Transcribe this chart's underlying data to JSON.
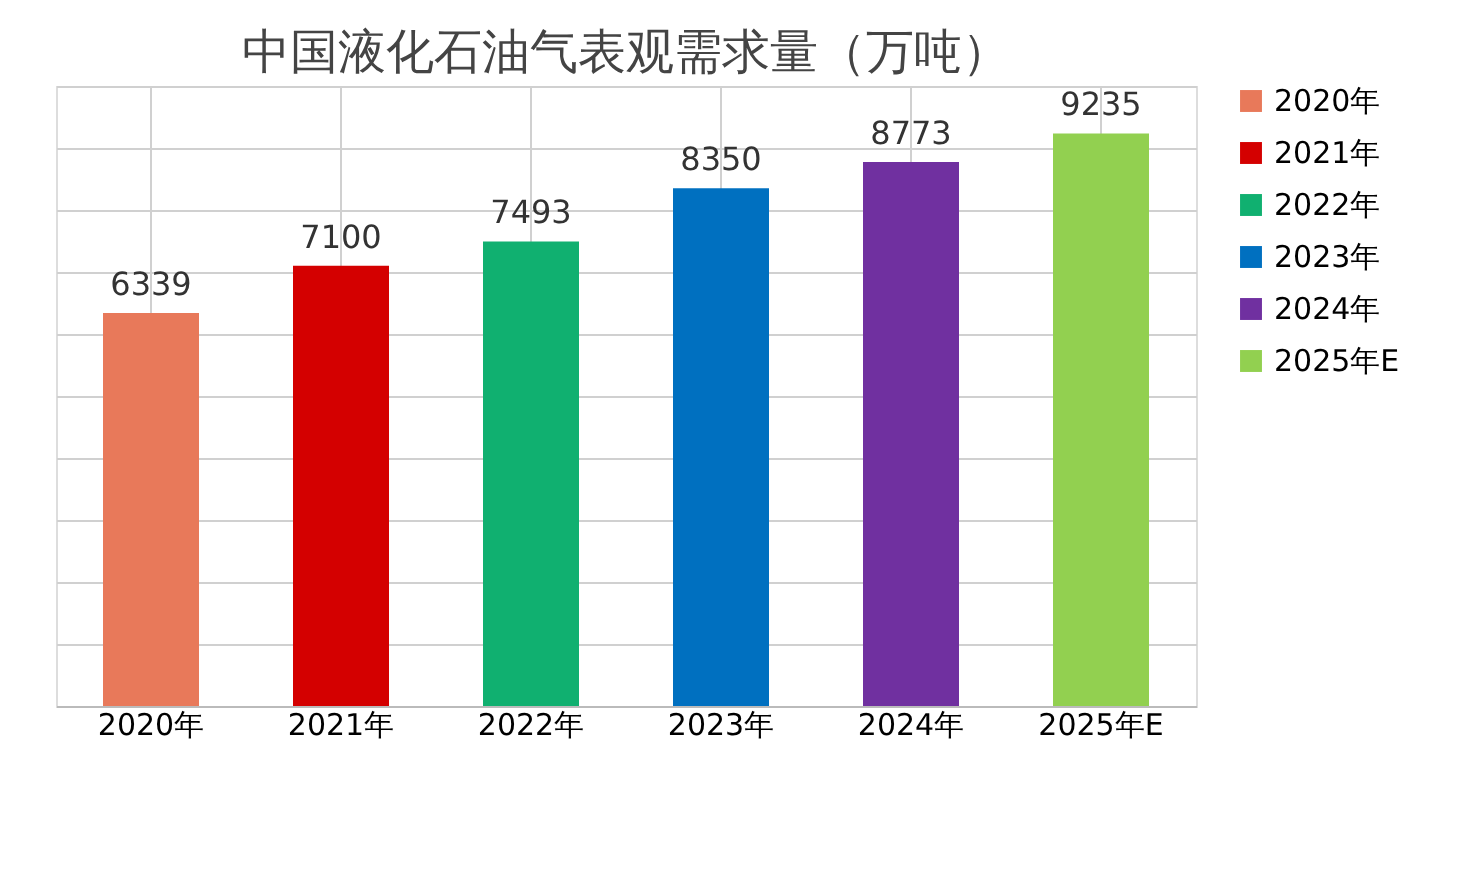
{
  "chart_data": {
    "type": "bar",
    "title": "中国液化石油气表观需求量（万吨）",
    "categories": [
      "2020年",
      "2021年",
      "2022年",
      "2023年",
      "2024年",
      "2025年E"
    ],
    "series": [
      {
        "name": "2020年",
        "color": "#e8795a",
        "values": [
          6339,
          null,
          null,
          null,
          null,
          null
        ]
      },
      {
        "name": "2021年",
        "color": "#d40000",
        "values": [
          null,
          7100,
          null,
          null,
          null,
          null
        ]
      },
      {
        "name": "2022年",
        "color": "#10b070",
        "values": [
          null,
          null,
          7493,
          null,
          null,
          null
        ]
      },
      {
        "name": "2023年",
        "color": "#0070c0",
        "values": [
          null,
          null,
          null,
          8350,
          null,
          null
        ]
      },
      {
        "name": "2024年",
        "color": "#7030a0",
        "values": [
          null,
          null,
          null,
          null,
          8773,
          null
        ]
      },
      {
        "name": "2025年E",
        "color": "#92d050",
        "values": [
          null,
          null,
          null,
          null,
          null,
          9235
        ]
      }
    ],
    "data_labels": true,
    "grid": true,
    "legend": "right",
    "tick_labels": "x"
  }
}
